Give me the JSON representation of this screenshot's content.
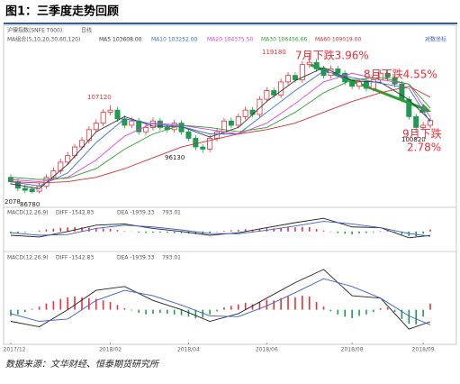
{
  "title": "图1：三季度走势回顾",
  "source": "数据来源：文华财经、恒泰期货研究所",
  "chart_data": [
    {
      "type": "candlestick",
      "header": [
        "沪镍指数(SNFE T000)",
        "日线"
      ],
      "legend_title": "MA组合(5,10,20,30,60,120)",
      "log_label": "对数坐标",
      "up_color": "#e8303a",
      "down_color": "#1f9a50",
      "ylim": [
        84000,
        121000
      ],
      "xlim": [
        0,
        59
      ],
      "xticks": [
        {
          "value": 0,
          "label": "2017/12"
        },
        {
          "value": 14,
          "label": "2018/02"
        },
        {
          "value": 25,
          "label": "2018/04"
        },
        {
          "value": 36,
          "label": "2018/06"
        },
        {
          "value": 48,
          "label": "2018/08"
        },
        {
          "value": 58,
          "label": "2018/09"
        }
      ],
      "open": [
        90500,
        89500,
        88000,
        87800,
        87300,
        88500,
        90500,
        92000,
        94000,
        95500,
        97500,
        99000,
        101500,
        103000,
        105500,
        106000,
        104000,
        102500,
        103500,
        101000,
        102000,
        103500,
        102000,
        101500,
        103000,
        101000,
        99500,
        97500,
        97000,
        99500,
        101000,
        103500,
        102500,
        104500,
        106000,
        105000,
        108500,
        110500,
        109500,
        112500,
        114000,
        113000,
        116500,
        117000,
        115500,
        114000,
        115500,
        114500,
        112500,
        111500,
        112500,
        111000,
        113000,
        114500,
        113500,
        112000,
        108500,
        104500,
        102000,
        102500
      ],
      "high": [
        91200,
        90200,
        88800,
        88300,
        89200,
        91200,
        92800,
        94800,
        96300,
        98200,
        99800,
        102300,
        103900,
        106200,
        107120,
        106700,
        104800,
        104300,
        104200,
        102800,
        104300,
        104200,
        102800,
        103800,
        103700,
        101700,
        100200,
        98200,
        100200,
        101800,
        104200,
        104300,
        105200,
        106800,
        106700,
        109200,
        111300,
        111200,
        113300,
        114800,
        114700,
        117300,
        119180,
        117800,
        116200,
        116300,
        116200,
        115200,
        113200,
        113300,
        113200,
        113800,
        115300,
        115200,
        114200,
        112700,
        109200,
        105200,
        103300,
        104300
      ],
      "low": [
        88800,
        87300,
        86900,
        86780,
        86800,
        87800,
        89800,
        91300,
        93300,
        94800,
        96800,
        98300,
        100800,
        102300,
        104800,
        103300,
        101800,
        101800,
        100300,
        100300,
        101300,
        101300,
        100800,
        100800,
        100300,
        98800,
        96800,
        96130,
        96300,
        98800,
        100300,
        101800,
        101800,
        103800,
        104300,
        104300,
        107800,
        108800,
        108800,
        111800,
        112300,
        112300,
        115800,
        114800,
        113300,
        113300,
        113800,
        111800,
        110800,
        110800,
        110300,
        110300,
        112300,
        112800,
        111300,
        107800,
        103800,
        100820,
        101300,
        101800
      ],
      "close": [
        89500,
        88000,
        87500,
        87200,
        88500,
        90500,
        92000,
        94000,
        95500,
        97500,
        99000,
        101500,
        103000,
        105500,
        106000,
        104000,
        102500,
        103500,
        101000,
        102000,
        103500,
        102000,
        101500,
        103000,
        101000,
        99500,
        97500,
        97000,
        99500,
        101000,
        103500,
        102500,
        104500,
        106000,
        105000,
        108500,
        110500,
        109500,
        112500,
        114000,
        113000,
        116500,
        117000,
        115500,
        114000,
        115500,
        114500,
        112500,
        111500,
        112500,
        111000,
        113000,
        114500,
        113500,
        112000,
        108500,
        104500,
        102000,
        102500,
        103600
      ],
      "series": [
        {
          "name": "MA5 103608.00",
          "color": "#333333",
          "x": [
            0,
            4,
            8,
            12,
            16,
            20,
            24,
            28,
            32,
            36,
            40,
            44,
            48,
            52,
            56,
            59
          ],
          "values": [
            89000,
            87900,
            93500,
            101000,
            104500,
            102300,
            102200,
            99800,
            102000,
            108000,
            112800,
            115800,
            112800,
            112400,
            108400,
            103600
          ]
        },
        {
          "name": "MA10 103252.00",
          "color": "#3a6fd8",
          "x": [
            0,
            4,
            8,
            12,
            16,
            20,
            24,
            28,
            32,
            36,
            40,
            44,
            48,
            52,
            56,
            59
          ],
          "values": [
            89500,
            88500,
            91500,
            98500,
            104000,
            102800,
            102200,
            100500,
            100500,
            105500,
            110500,
            115000,
            113500,
            112200,
            111000,
            103250
          ]
        },
        {
          "name": "MA20 104375.50",
          "color": "#e040e0",
          "x": [
            0,
            4,
            8,
            12,
            16,
            20,
            24,
            28,
            32,
            36,
            40,
            44,
            48,
            52,
            56,
            59
          ],
          "values": [
            90000,
            89500,
            90500,
            94500,
            100000,
            103000,
            102500,
            101500,
            100500,
            103000,
            107500,
            112500,
            114500,
            113000,
            112000,
            104400
          ]
        },
        {
          "name": "MA30 106456.66",
          "color": "#2ca02c",
          "x": [
            0,
            4,
            8,
            12,
            16,
            20,
            24,
            28,
            32,
            36,
            40,
            44,
            48,
            52,
            56,
            59
          ],
          "values": [
            90500,
            90000,
            90300,
            92500,
            97000,
            100500,
            102500,
            102000,
            101000,
            102000,
            105500,
            110000,
            113000,
            113500,
            112000,
            106450
          ]
        },
        {
          "name": "MA60 109019.00",
          "color": "#d83030",
          "x": [
            0,
            4,
            8,
            12,
            16,
            20,
            24,
            28,
            32,
            36,
            40,
            44,
            48,
            52,
            56,
            59
          ],
          "values": [
            89500,
            89200,
            89500,
            90500,
            92500,
            95000,
            97500,
            99000,
            100500,
            101500,
            103000,
            105500,
            108000,
            110000,
            111500,
            109000
          ]
        }
      ],
      "annotations": [
        "119180",
        "107120",
        "96130",
        "2078",
        "86780",
        "100820",
        "7月下跌3.96%",
        "8月下跌4.55%",
        "9月下跌",
        "2.78%"
      ]
    },
    {
      "type": "macd",
      "legend": [
        "MACD(12,26,9)",
        "DIFF -1542.83",
        "DEA -1939.33",
        "793.01"
      ],
      "up_color": "#e8303a",
      "down_color": "#1f9a50",
      "ylim": [
        -4000,
        6000
      ],
      "hist": [
        -800,
        -600,
        -300,
        100,
        400,
        800,
        1100,
        1400,
        1600,
        1700,
        1600,
        1500,
        1400,
        1200,
        1000,
        600,
        200,
        -100,
        -400,
        -600,
        -500,
        -400,
        -500,
        -600,
        -700,
        -900,
        -1100,
        -1000,
        -600,
        -200,
        300,
        500,
        700,
        900,
        700,
        1000,
        1300,
        1200,
        1500,
        1700,
        1600,
        1800,
        1700,
        1000,
        400,
        -200,
        -600,
        -900,
        -1100,
        -800,
        -600,
        -300,
        200,
        300,
        -300,
        -1200,
        -1800,
        -1900,
        -900,
        793.01
      ],
      "diff": {
        "color": "#222222",
        "x": [
          0,
          4,
          8,
          12,
          16,
          20,
          24,
          28,
          32,
          36,
          40,
          44,
          48,
          52,
          56,
          59
        ],
        "values": [
          -1500,
          -2200,
          0,
          2500,
          3000,
          1200,
          0,
          -1500,
          -500,
          1500,
          3500,
          5200,
          1800,
          1500,
          -2500,
          -1542.83
        ]
      },
      "dea": {
        "color": "#3a5fd0",
        "x": [
          0,
          4,
          8,
          12,
          16,
          20,
          24,
          28,
          32,
          36,
          40,
          44,
          48,
          52,
          56,
          59
        ],
        "values": [
          -500,
          -1500,
          -1200,
          1200,
          2500,
          1800,
          600,
          -800,
          -900,
          500,
          2200,
          4000,
          3000,
          1500,
          -800,
          -1939.33
        ]
      }
    }
  ]
}
